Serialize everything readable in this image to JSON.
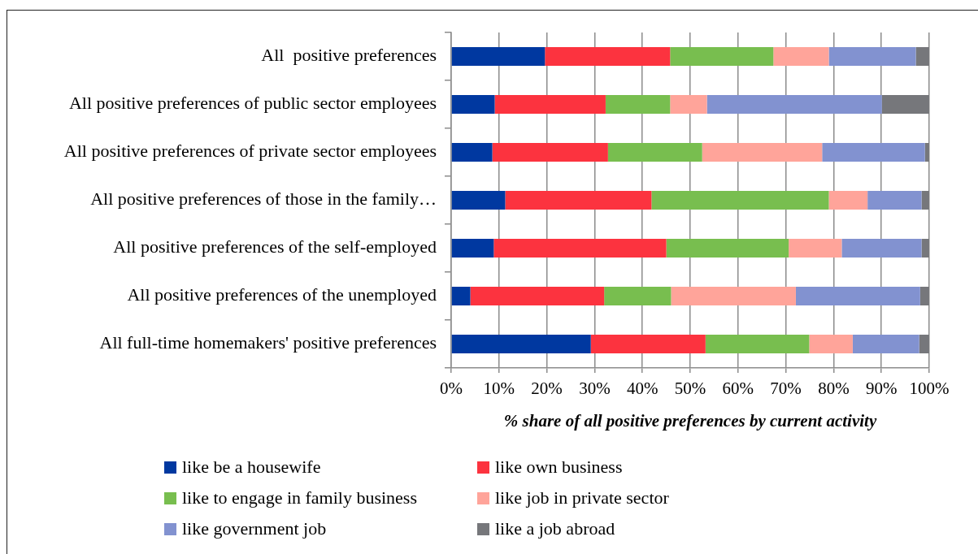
{
  "chart_data": {
    "type": "bar",
    "orientation": "horizontal",
    "stacked": true,
    "xlabel": "% share of all positive preferences by current activity",
    "categories": [
      "All  positive preferences",
      "All positive preferences of public sector employees",
      "All positive preferences of private sector employees",
      "All positive preferences of those in the family…",
      "All positive preferences of the self-employed",
      "All positive preferences of the unemployed",
      "All full-time homemakers' positive preferences"
    ],
    "series": [
      {
        "name": "like be a housewife",
        "color": "#0038a0",
        "values": [
          19.6,
          9.1,
          8.6,
          11.3,
          8.9,
          4.0,
          29.2
        ]
      },
      {
        "name": "like own business",
        "color": "#fc333f",
        "values": [
          26.2,
          23.2,
          24.2,
          30.6,
          36.1,
          28.0,
          24.0
        ]
      },
      {
        "name": "like to engage in family business",
        "color": "#78be4f",
        "values": [
          21.6,
          13.5,
          19.7,
          37.1,
          25.6,
          14.0,
          21.7
        ]
      },
      {
        "name": "like job in private sector",
        "color": "#ffa49a",
        "values": [
          11.6,
          7.7,
          25.1,
          8.1,
          11.1,
          26.1,
          9.1
        ]
      },
      {
        "name": "like government job",
        "color": "#8292d0",
        "values": [
          18.2,
          36.6,
          21.5,
          11.3,
          16.7,
          26.0,
          13.9
        ]
      },
      {
        "name": "like a job abroad",
        "color": "#76777b",
        "values": [
          2.8,
          9.9,
          0.9,
          1.6,
          1.6,
          1.9,
          2.1
        ]
      }
    ],
    "xlim": [
      0,
      100
    ],
    "xticks": [
      {
        "value": 0,
        "label": "0%"
      },
      {
        "value": 10,
        "label": "10%"
      },
      {
        "value": 20,
        "label": "20%"
      },
      {
        "value": 30,
        "label": "30%"
      },
      {
        "value": 40,
        "label": "40%"
      },
      {
        "value": 50,
        "label": "50%"
      },
      {
        "value": 60,
        "label": "60%"
      },
      {
        "value": 70,
        "label": "70%"
      },
      {
        "value": 80,
        "label": "80%"
      },
      {
        "value": 90,
        "label": "90%"
      },
      {
        "value": 100,
        "label": "100%"
      }
    ],
    "grid": "x",
    "legend": "bottom"
  }
}
